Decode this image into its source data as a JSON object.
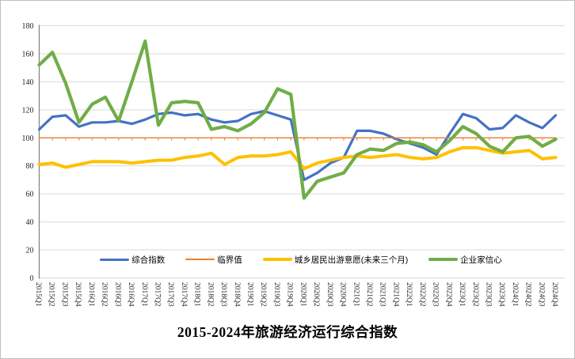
{
  "chart_data": {
    "type": "line",
    "title": "2015-2024年旅游经济运行综合指数",
    "xlabel": "",
    "ylabel": "",
    "ylim": [
      0,
      180
    ],
    "ytick_step": 20,
    "grid": true,
    "legend_position": "bottom-inside",
    "categories": [
      "2015Q1",
      "2015Q2",
      "2015Q3",
      "2015Q4",
      "2016Q1",
      "2016Q2",
      "2016Q3",
      "2016Q4",
      "2017Q1",
      "2017Q2",
      "2017Q3",
      "2017Q4",
      "2018Q1",
      "2018Q2",
      "2018Q3",
      "2018Q4",
      "2019Q1",
      "2019Q2",
      "2019Q3",
      "2019Q4",
      "2020Q1",
      "2020Q2",
      "2020Q3",
      "2020Q4",
      "2021Q1",
      "2021Q2",
      "2021Q3",
      "2021Q4",
      "2022Q1",
      "2022Q2",
      "2022Q3",
      "2022Q4",
      "2023Q1",
      "2023Q2",
      "2023Q3",
      "2023Q4",
      "2024Q1",
      "2024Q2",
      "2024Q3",
      "2024Q4"
    ],
    "series": [
      {
        "name": "综合指数",
        "color": "#4472C4",
        "line_width": 3.2,
        "values": [
          106,
          115,
          116,
          108,
          111,
          111,
          112,
          110,
          113,
          117,
          118,
          116,
          117,
          113,
          111,
          112,
          117,
          119,
          116,
          113,
          70,
          75,
          82,
          86,
          105,
          105,
          103,
          99,
          96,
          93,
          88,
          103,
          117,
          114,
          106,
          107,
          116,
          111,
          107,
          116
        ]
      },
      {
        "name": "临界值",
        "color": "#ED7D31",
        "line_width": 1.4,
        "marker": "tick-down",
        "values": [
          100,
          100,
          100,
          100,
          100,
          100,
          100,
          100,
          100,
          100,
          100,
          100,
          100,
          100,
          100,
          100,
          100,
          100,
          100,
          100,
          100,
          100,
          100,
          100,
          100,
          100,
          100,
          100,
          100,
          100,
          100,
          100,
          100,
          100,
          100,
          100,
          100,
          100,
          100,
          100
        ]
      },
      {
        "name": "城乡居民出游意愿(未来三个月)",
        "color": "#FFC000",
        "line_width": 4,
        "values": [
          81,
          82,
          79,
          81,
          83,
          83,
          83,
          82,
          83,
          84,
          84,
          86,
          87,
          89,
          81,
          86,
          87,
          87,
          88,
          90,
          78,
          82,
          84,
          86,
          87,
          86,
          87,
          88,
          86,
          85,
          86,
          90,
          93,
          93,
          91,
          89,
          90,
          91,
          85,
          86
        ]
      },
      {
        "name": "企业家信心",
        "color": "#70AD47",
        "line_width": 4.2,
        "values": [
          152,
          161,
          139,
          111,
          124,
          129,
          112,
          140,
          169,
          109,
          125,
          126,
          125,
          106,
          108,
          105,
          110,
          118,
          135,
          131,
          57,
          69,
          72,
          75,
          88,
          92,
          91,
          96,
          97,
          95,
          90,
          98,
          108,
          103,
          94,
          90,
          100,
          101,
          94,
          99
        ]
      }
    ]
  }
}
